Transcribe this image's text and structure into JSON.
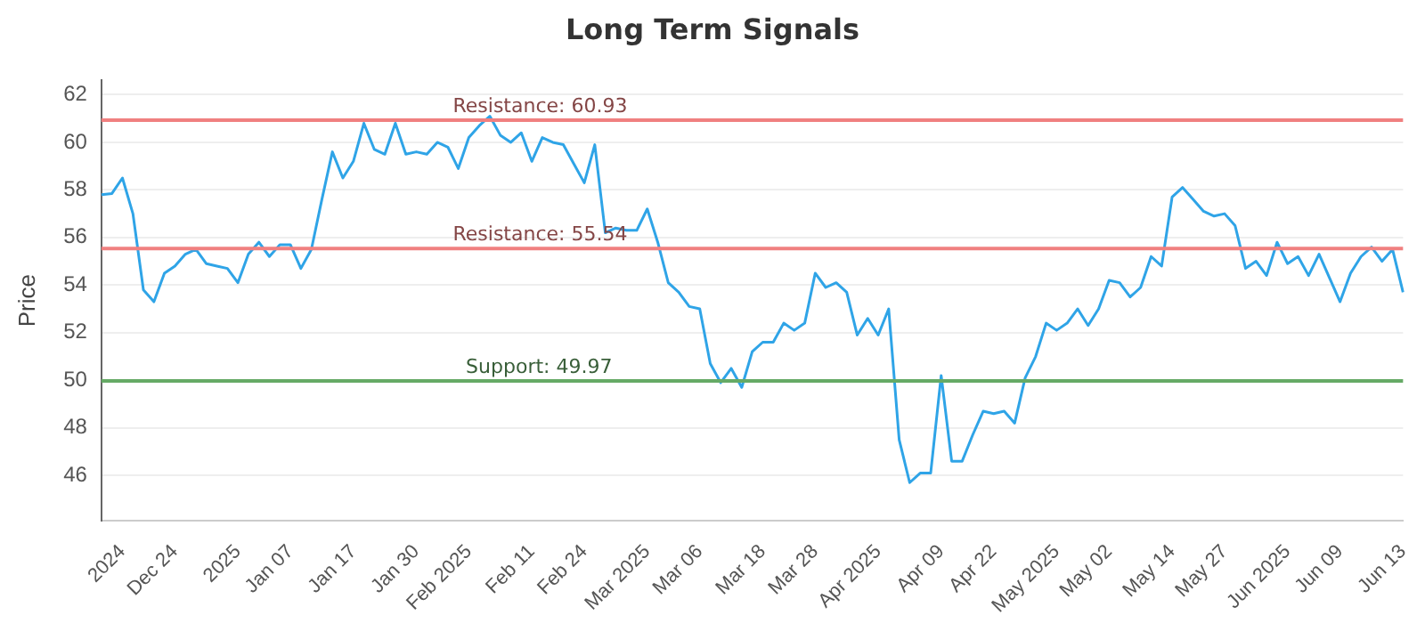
{
  "chart_data": {
    "type": "line",
    "title": "Long Term Signals",
    "ylabel": "Price",
    "categories": [
      null,
      null,
      "2024",
      null,
      null,
      null,
      null,
      "Dec 24",
      null,
      null,
      null,
      null,
      null,
      "2025",
      null,
      null,
      null,
      null,
      "Jan 07",
      null,
      null,
      null,
      null,
      null,
      "Jan 17",
      null,
      null,
      null,
      null,
      null,
      "Jan 30",
      null,
      null,
      null,
      null,
      "Feb 2025",
      null,
      null,
      null,
      null,
      null,
      "Feb 11",
      null,
      null,
      null,
      null,
      "Feb 24",
      null,
      null,
      null,
      null,
      null,
      "Mar 2025",
      null,
      null,
      null,
      null,
      "Mar 06",
      null,
      null,
      null,
      null,
      null,
      "Mar 18",
      null,
      null,
      null,
      null,
      "Mar 28",
      null,
      null,
      null,
      null,
      null,
      "Apr 2025",
      null,
      null,
      null,
      null,
      null,
      "Apr 09",
      null,
      null,
      null,
      null,
      "Apr 22",
      null,
      null,
      null,
      null,
      null,
      "May 2025",
      null,
      null,
      null,
      null,
      "May 02",
      null,
      null,
      null,
      null,
      null,
      "May 14",
      null,
      null,
      null,
      null,
      "May 27",
      null,
      null,
      null,
      null,
      null,
      "Jun 2025",
      null,
      null,
      null,
      null,
      "Jun 09",
      null,
      null,
      null,
      null,
      null,
      "Jun 13"
    ],
    "series": [
      {
        "color": "#2fa4e7",
        "values": [
          57.8,
          57.85,
          58.5,
          57.0,
          53.8,
          53.3,
          54.5,
          54.8,
          55.3,
          55.5,
          54.9,
          54.8,
          54.7,
          54.1,
          55.3,
          55.8,
          55.2,
          55.7,
          55.7,
          54.7,
          55.5,
          57.6,
          59.6,
          58.5,
          59.2,
          60.8,
          59.7,
          59.5,
          60.8,
          59.5,
          59.6,
          59.5,
          60.0,
          59.8,
          58.9,
          60.2,
          60.7,
          61.1,
          60.3,
          60.0,
          60.4,
          59.2,
          60.2,
          60.0,
          59.9,
          59.1,
          58.3,
          59.9,
          56.2,
          56.4,
          56.3,
          56.3,
          57.2,
          55.8,
          54.1,
          53.7,
          53.1,
          53.0,
          50.7,
          49.9,
          50.5,
          49.7,
          51.2,
          51.6,
          51.6,
          52.4,
          52.1,
          52.4,
          54.5,
          53.9,
          54.1,
          53.7,
          51.9,
          52.6,
          51.9,
          53.0,
          47.5,
          45.7,
          46.1,
          46.1,
          50.2,
          46.6,
          46.6,
          47.7,
          48.7,
          48.6,
          48.7,
          48.2,
          50.1,
          51.0,
          52.4,
          52.1,
          52.4,
          53.0,
          52.3,
          53.0,
          54.2,
          54.1,
          53.5,
          53.9,
          55.2,
          54.8,
          57.7,
          58.1,
          57.6,
          57.1,
          56.9,
          57.0,
          56.5,
          54.7,
          55.0,
          54.4,
          55.8,
          54.9,
          55.2,
          54.4,
          55.3,
          54.3,
          53.3,
          54.5,
          55.2,
          55.6,
          55.0,
          55.5,
          53.7
        ]
      }
    ],
    "ylim": [
      44.1,
      62.6
    ],
    "yticks": [
      46,
      48,
      50,
      52,
      54,
      56,
      58,
      60,
      62
    ],
    "grid": "y",
    "marker": "none",
    "line_style": "solid",
    "ref_lines": [
      {
        "axis": "y",
        "value": 60.93,
        "label": "Resistance: 60.93",
        "color": "#f08080"
      },
      {
        "axis": "y",
        "value": 55.54,
        "label": "Resistance: 55.54",
        "color": "#f08080"
      },
      {
        "axis": "y",
        "value": 49.97,
        "label": "Support: 49.97",
        "color": "#66aa66"
      }
    ]
  }
}
